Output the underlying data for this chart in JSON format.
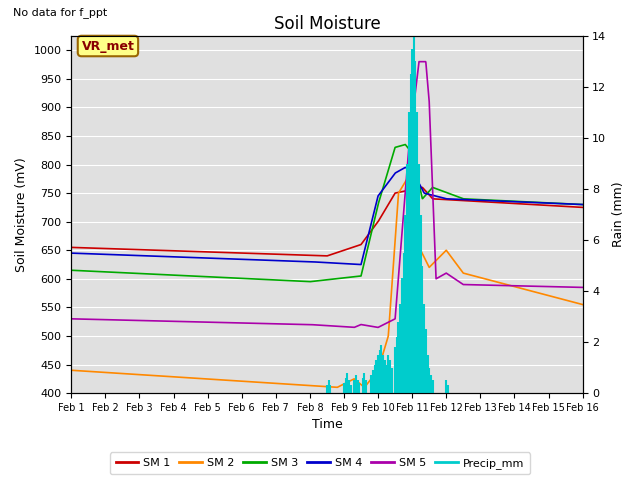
{
  "title": "Soil Moisture",
  "xlabel": "Time",
  "ylabel_left": "Soil Moisture (mV)",
  "ylabel_right": "Rain (mm)",
  "annotation": "No data for f_ppt",
  "station_label": "VR_met",
  "ylim_left": [
    400,
    1025
  ],
  "ylim_right": [
    0,
    14
  ],
  "yticks_left": [
    400,
    450,
    500,
    550,
    600,
    650,
    700,
    750,
    800,
    850,
    900,
    950,
    1000
  ],
  "yticks_right": [
    0,
    2,
    4,
    6,
    8,
    10,
    12,
    14
  ],
  "xtick_labels": [
    "Feb 1",
    "Feb 2",
    "Feb 3",
    "Feb 4",
    "Feb 5",
    "Feb 6",
    "Feb 7",
    "Feb 8",
    "Feb 9",
    "Feb 10",
    "Feb 11",
    "Feb 12",
    "Feb 13",
    "Feb 14",
    "Feb 15",
    "Feb 16"
  ],
  "colors": {
    "SM1": "#cc0000",
    "SM2": "#ff8800",
    "SM3": "#00aa00",
    "SM4": "#0000cc",
    "SM5": "#aa00aa",
    "Precip": "#00cccc",
    "background": "#e0e0e0"
  },
  "legend_labels": [
    "SM 1",
    "SM 2",
    "SM 3",
    "SM 4",
    "SM 5",
    "Precip_mm"
  ]
}
